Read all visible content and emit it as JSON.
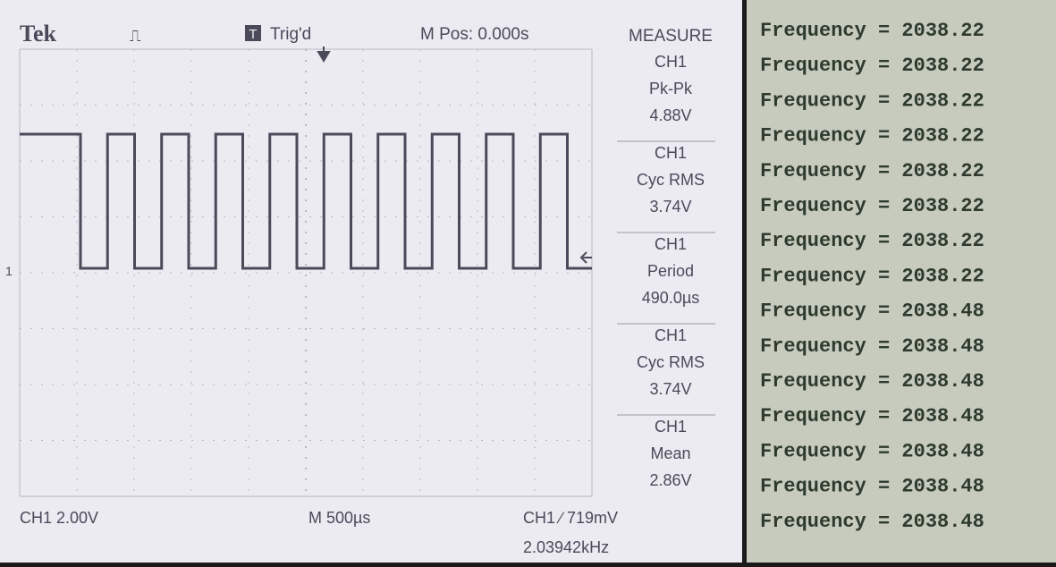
{
  "scope": {
    "header": {
      "brand": "Tek",
      "trigger_icon": "T",
      "trigger": "Trig'd",
      "position": "M Pos: 0.000s",
      "menu": "MEASURE"
    },
    "ch_marker": "1",
    "measurements": [
      {
        "channel": "CH1",
        "label": "Pk-Pk",
        "value": "4.88V"
      },
      {
        "channel": "CH1",
        "label": "Cyc RMS",
        "value": "3.74V"
      },
      {
        "channel": "CH1",
        "label": "Period",
        "value": "490.0µs"
      },
      {
        "channel": "CH1",
        "label": "Cyc RMS",
        "value": "3.74V"
      },
      {
        "channel": "CH1",
        "label": "Mean",
        "value": "2.86V"
      }
    ],
    "footer": {
      "channel_scale": "CH1 2.00V",
      "timebase": "M 500µs",
      "trigger_level": "CH1 ∕ 719mV",
      "frequency": "2.03942kHz"
    }
  },
  "serial": {
    "lines": [
      "Frequency = 2038.22",
      "Frequency = 2038.22",
      "Frequency = 2038.22",
      "Frequency = 2038.22",
      "Frequency = 2038.22",
      "Frequency = 2038.22",
      "Frequency = 2038.22",
      "Frequency = 2038.22",
      "Frequency = 2038.48",
      "Frequency = 2038.48",
      "Frequency = 2038.48",
      "Frequency = 2038.48",
      "Frequency = 2038.48",
      "Frequency = 2038.48",
      "Frequency = 2038.48"
    ]
  }
}
